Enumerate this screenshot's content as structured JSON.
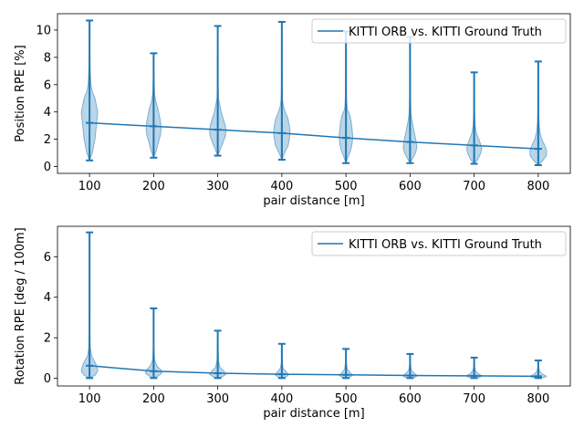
{
  "chart_data": [
    {
      "type": "violin",
      "xlabel": "pair distance [m]",
      "ylabel": "Position RPE [%]",
      "xlim": [
        50,
        850
      ],
      "ylim": [
        -0.5,
        11.2
      ],
      "xticks": [
        100,
        200,
        300,
        400,
        500,
        600,
        700,
        800
      ],
      "yticks": [
        0,
        2,
        4,
        6,
        8,
        10
      ],
      "legend": {
        "position": "top-right",
        "entries": [
          "KITTI ORB vs. KITTI Ground Truth"
        ]
      },
      "series": [
        {
          "name": "KITTI ORB vs. KITTI Ground Truth",
          "x": [
            100,
            200,
            300,
            400,
            500,
            600,
            700,
            800
          ],
          "mean": [
            3.2,
            2.95,
            2.7,
            2.45,
            2.1,
            1.8,
            1.55,
            1.3
          ],
          "min": [
            0.45,
            0.65,
            0.8,
            0.5,
            0.25,
            0.25,
            0.2,
            0.1
          ],
          "max": [
            10.7,
            8.3,
            10.3,
            10.6,
            9.9,
            9.5,
            6.9,
            7.7
          ]
        }
      ],
      "violins": [
        {
          "x": 100,
          "profile": [
            [
              0.45,
              0
            ],
            [
              1.0,
              4
            ],
            [
              1.5,
              6
            ],
            [
              2.0,
              8
            ],
            [
              2.5,
              9
            ],
            [
              3.0,
              10
            ],
            [
              3.5,
              11
            ],
            [
              4.0,
              12
            ],
            [
              4.5,
              10
            ],
            [
              5.0,
              8
            ],
            [
              5.5,
              4
            ],
            [
              6.0,
              2
            ],
            [
              7.0,
              1
            ],
            [
              8.0,
              0.5
            ],
            [
              10.7,
              0
            ]
          ]
        },
        {
          "x": 200,
          "profile": [
            [
              0.65,
              0
            ],
            [
              1.2,
              4
            ],
            [
              1.8,
              7
            ],
            [
              2.3,
              10
            ],
            [
              2.8,
              11
            ],
            [
              3.3,
              10
            ],
            [
              3.8,
              8
            ],
            [
              4.3,
              6
            ],
            [
              4.8,
              3
            ],
            [
              5.3,
              1.5
            ],
            [
              6.5,
              0.5
            ],
            [
              8.3,
              0
            ]
          ]
        },
        {
          "x": 300,
          "profile": [
            [
              0.8,
              0
            ],
            [
              1.3,
              4
            ],
            [
              1.8,
              8
            ],
            [
              2.2,
              11
            ],
            [
              2.6,
              12
            ],
            [
              3.0,
              11
            ],
            [
              3.5,
              8
            ],
            [
              4.0,
              5
            ],
            [
              4.5,
              3
            ],
            [
              5.0,
              1
            ],
            [
              6.0,
              0.5
            ],
            [
              10.3,
              0
            ]
          ]
        },
        {
          "x": 400,
          "profile": [
            [
              0.5,
              0
            ],
            [
              1.0,
              4
            ],
            [
              1.5,
              9
            ],
            [
              2.0,
              11
            ],
            [
              2.5,
              12
            ],
            [
              3.0,
              11
            ],
            [
              3.5,
              9
            ],
            [
              4.0,
              5
            ],
            [
              4.5,
              2
            ],
            [
              5.0,
              1
            ],
            [
              6.0,
              0.5
            ],
            [
              10.6,
              0
            ]
          ]
        },
        {
          "x": 500,
          "profile": [
            [
              0.25,
              0
            ],
            [
              0.7,
              3
            ],
            [
              1.2,
              7
            ],
            [
              1.7,
              9
            ],
            [
              2.2,
              10
            ],
            [
              2.7,
              9
            ],
            [
              3.2,
              8
            ],
            [
              3.7,
              6
            ],
            [
              4.2,
              2
            ],
            [
              5.0,
              0.8
            ],
            [
              6.0,
              0.3
            ],
            [
              9.9,
              0
            ]
          ]
        },
        {
          "x": 600,
          "profile": [
            [
              0.25,
              0
            ],
            [
              0.6,
              4
            ],
            [
              1.0,
              8
            ],
            [
              1.4,
              10
            ],
            [
              1.8,
              9
            ],
            [
              2.3,
              7
            ],
            [
              2.8,
              5
            ],
            [
              3.3,
              3
            ],
            [
              3.8,
              1.5
            ],
            [
              5.0,
              0.6
            ],
            [
              7.0,
              0.3
            ],
            [
              9.5,
              0
            ]
          ]
        },
        {
          "x": 700,
          "profile": [
            [
              0.2,
              0
            ],
            [
              0.5,
              5
            ],
            [
              0.9,
              9
            ],
            [
              1.3,
              11
            ],
            [
              1.7,
              9
            ],
            [
              2.1,
              6
            ],
            [
              2.5,
              3
            ],
            [
              3.0,
              1.5
            ],
            [
              3.5,
              1
            ],
            [
              4.0,
              0.5
            ],
            [
              5.0,
              0.2
            ],
            [
              6.9,
              0
            ]
          ]
        },
        {
          "x": 800,
          "profile": [
            [
              0.1,
              0
            ],
            [
              0.4,
              6
            ],
            [
              0.8,
              12
            ],
            [
              1.2,
              12
            ],
            [
              1.6,
              9
            ],
            [
              2.0,
              5
            ],
            [
              2.5,
              2.5
            ],
            [
              3.0,
              1.5
            ],
            [
              3.5,
              0.8
            ],
            [
              4.5,
              0.3
            ],
            [
              7.7,
              0
            ]
          ]
        }
      ]
    },
    {
      "type": "violin",
      "xlabel": "pair distance [m]",
      "ylabel": "Rotation RPE [deg / 100m]",
      "xlim": [
        50,
        850
      ],
      "ylim": [
        -0.38,
        7.5
      ],
      "xticks": [
        100,
        200,
        300,
        400,
        500,
        600,
        700,
        800
      ],
      "yticks": [
        0,
        2,
        4,
        6
      ],
      "legend": {
        "position": "top-right",
        "entries": [
          "KITTI ORB vs. KITTI Ground Truth"
        ]
      },
      "series": [
        {
          "name": "KITTI ORB vs. KITTI Ground Truth",
          "x": [
            100,
            200,
            300,
            400,
            500,
            600,
            700,
            800
          ],
          "mean": [
            0.62,
            0.35,
            0.25,
            0.2,
            0.17,
            0.14,
            0.12,
            0.1
          ],
          "min": [
            0.01,
            0.01,
            0.01,
            0.01,
            0.01,
            0.01,
            0.01,
            0.01
          ],
          "max": [
            7.2,
            3.45,
            2.35,
            1.7,
            1.45,
            1.2,
            1.02,
            0.88
          ]
        }
      ],
      "violins": [
        {
          "x": 100,
          "profile": [
            [
              0.01,
              0
            ],
            [
              0.15,
              8
            ],
            [
              0.35,
              12
            ],
            [
              0.55,
              11
            ],
            [
              0.8,
              8
            ],
            [
              1.1,
              3
            ],
            [
              1.5,
              1
            ],
            [
              2.5,
              0.3
            ],
            [
              7.2,
              0
            ]
          ]
        },
        {
          "x": 200,
          "profile": [
            [
              0.01,
              0
            ],
            [
              0.1,
              6
            ],
            [
              0.25,
              12
            ],
            [
              0.4,
              11
            ],
            [
              0.6,
              5
            ],
            [
              0.9,
              1.5
            ],
            [
              1.5,
              0.4
            ],
            [
              3.45,
              0
            ]
          ]
        },
        {
          "x": 300,
          "profile": [
            [
              0.01,
              0
            ],
            [
              0.08,
              7
            ],
            [
              0.2,
              12
            ],
            [
              0.35,
              9
            ],
            [
              0.55,
              3
            ],
            [
              0.9,
              1
            ],
            [
              2.35,
              0
            ]
          ]
        },
        {
          "x": 400,
          "profile": [
            [
              0.01,
              0
            ],
            [
              0.07,
              6
            ],
            [
              0.17,
              10
            ],
            [
              0.3,
              7
            ],
            [
              0.5,
              2
            ],
            [
              0.8,
              0.6
            ],
            [
              1.7,
              0
            ]
          ]
        },
        {
          "x": 500,
          "profile": [
            [
              0.01,
              0
            ],
            [
              0.06,
              6
            ],
            [
              0.15,
              10
            ],
            [
              0.28,
              6
            ],
            [
              0.45,
              2
            ],
            [
              0.8,
              0.5
            ],
            [
              1.45,
              0
            ]
          ]
        },
        {
          "x": 600,
          "profile": [
            [
              0.01,
              0
            ],
            [
              0.05,
              7
            ],
            [
              0.13,
              11
            ],
            [
              0.25,
              6
            ],
            [
              0.4,
              2
            ],
            [
              0.7,
              0.5
            ],
            [
              1.2,
              0
            ]
          ]
        },
        {
          "x": 700,
          "profile": [
            [
              0.01,
              0
            ],
            [
              0.05,
              8
            ],
            [
              0.12,
              12
            ],
            [
              0.22,
              6
            ],
            [
              0.38,
              2
            ],
            [
              0.6,
              0.5
            ],
            [
              1.02,
              0
            ]
          ]
        },
        {
          "x": 800,
          "profile": [
            [
              0.01,
              0
            ],
            [
              0.04,
              9
            ],
            [
              0.1,
              12
            ],
            [
              0.2,
              6
            ],
            [
              0.35,
              2
            ],
            [
              0.55,
              0.5
            ],
            [
              0.88,
              0
            ]
          ]
        }
      ]
    }
  ],
  "colors": {
    "series": "#1f77b4",
    "axes": "#000000",
    "legend_border": "#cccccc"
  }
}
